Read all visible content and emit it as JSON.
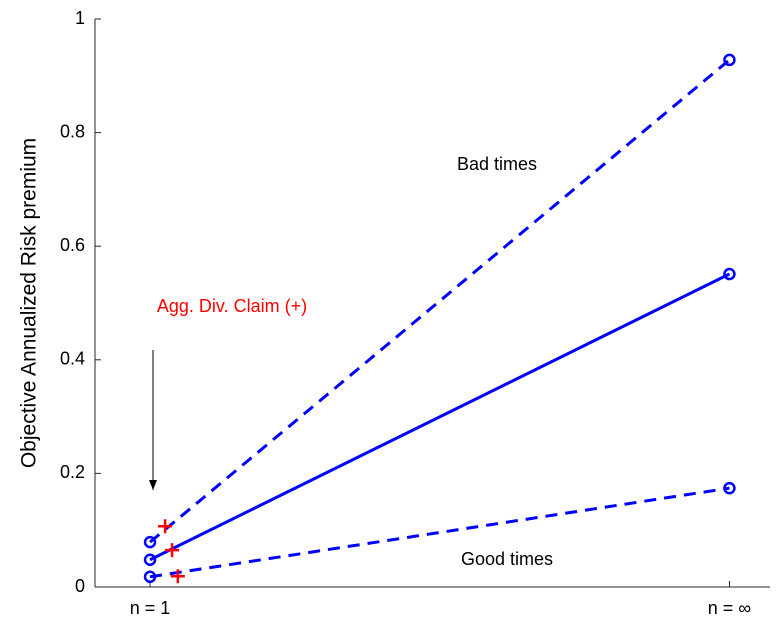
{
  "chart_data": {
    "type": "line",
    "y_label": "Objective Annualized Risk premium",
    "x": [
      0,
      1
    ],
    "xlim": [
      -0.095,
      1.07
    ],
    "xticks": [
      {
        "value": 0,
        "label": "n = 1"
      },
      {
        "value": 1,
        "label": "n = ∞"
      }
    ],
    "ylim": [
      0,
      1
    ],
    "yticks": [
      0,
      0.2,
      0.4,
      0.6,
      0.8,
      1
    ],
    "grid": false,
    "series": [
      {
        "color": "#0000ff",
        "dash": true,
        "values": [
          0.079,
          0.928
        ]
      },
      {
        "color": "#0000ff",
        "dash": false,
        "values": [
          0.048,
          0.551
        ]
      },
      {
        "color": "#0000ff",
        "dash": true,
        "values": [
          0.018,
          0.174
        ]
      }
    ],
    "plus_markers": {
      "color": "#ff0000",
      "x": [
        0.026,
        0.038,
        0.048
      ],
      "values": [
        0.107,
        0.065,
        0.019
      ]
    },
    "annotations": [
      "Bad times",
      "Good times",
      "Agg. Div. Claim (+)"
    ]
  }
}
